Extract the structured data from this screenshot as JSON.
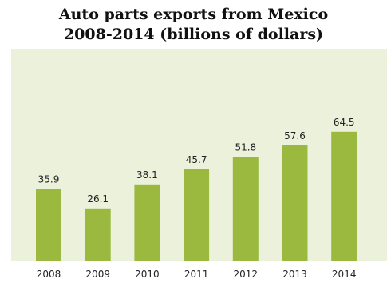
{
  "chart_data": {
    "type": "bar",
    "title_line1": "Auto parts exports from Mexico",
    "title_line2": "2008-2014 (billions of dollars)",
    "xlabel": "",
    "ylabel": "",
    "categories": [
      "2008",
      "2009",
      "2010",
      "2011",
      "2012",
      "2013",
      "2014"
    ],
    "values": [
      35.9,
      26.1,
      38.1,
      45.7,
      51.8,
      57.6,
      64.5
    ],
    "value_labels": [
      "35.9",
      "26.1",
      "38.1",
      "45.7",
      "51.8",
      "57.6",
      "64.5"
    ],
    "ylim": [
      0,
      70
    ],
    "grid": false,
    "legend": "none",
    "colors": {
      "bar": "#9bb93f",
      "plot_background": "#ecf1dc",
      "baseline": "#8aa56a"
    }
  }
}
